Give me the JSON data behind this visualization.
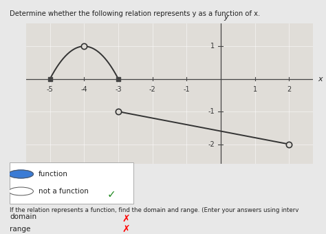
{
  "title": "Determine whether the following relation represents y as a function of x.",
  "bg_color": "#e8e8e8",
  "graph_bg": "#e0ddd8",
  "xlim": [
    -5.7,
    2.7
  ],
  "ylim": [
    -2.6,
    1.7
  ],
  "xticks": [
    -5,
    -4,
    -3,
    -2,
    -1,
    1,
    2
  ],
  "yticks": [
    -2,
    -1,
    1
  ],
  "curve_color": "#333333",
  "open_circle_color": "#333333",
  "open_circle_fill": "#e0ddd8",
  "filled_circle_color": "#444444",
  "checkmark_color": "#228B22",
  "radio_fill_selected": "#3a7bd5",
  "x_label": "x",
  "y_label": "y",
  "line_x1": -3.0,
  "line_y1": -1.0,
  "line_x2": 2.0,
  "line_y2": -2.0
}
